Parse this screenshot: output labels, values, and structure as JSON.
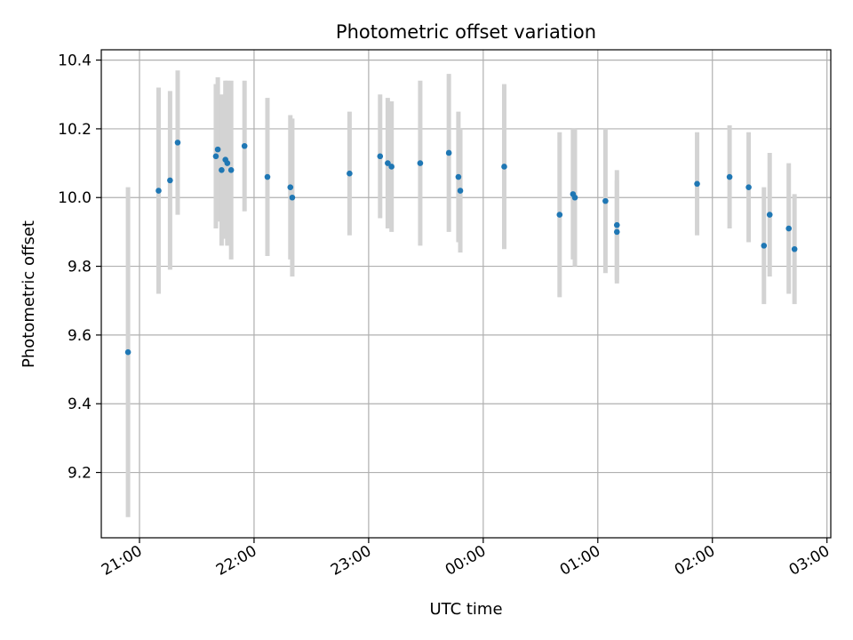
{
  "chart_data": {
    "type": "scatter",
    "title": "Photometric offset variation",
    "xlabel": "UTC time",
    "ylabel": "Photometric offset",
    "x_axis": {
      "kind": "time",
      "range": [
        "20:40",
        "03:02"
      ],
      "ticks": [
        {
          "time": "21:00",
          "label": "21:00"
        },
        {
          "time": "22:00",
          "label": "22:00"
        },
        {
          "time": "23:00",
          "label": "23:00"
        },
        {
          "time": "00:00",
          "label": "00:00"
        },
        {
          "time": "01:00",
          "label": "01:00"
        },
        {
          "time": "02:00",
          "label": "02:00"
        },
        {
          "time": "03:00",
          "label": "03:00"
        }
      ]
    },
    "y_axis": {
      "range": [
        9.01,
        10.43
      ],
      "ticks": [
        9.2,
        9.4,
        9.6,
        9.8,
        10.0,
        10.2,
        10.4
      ],
      "tick_labels": [
        "9.2",
        "9.4",
        "9.6",
        "9.8",
        "10.0",
        "10.2",
        "10.4"
      ]
    },
    "grid": true,
    "colors": {
      "point": "#1f77b4",
      "errorbar": "#d3d3d3",
      "grid": "#b0b0b0"
    },
    "series": [
      {
        "points": [
          {
            "time": "20:54",
            "y": 9.55,
            "err": 0.48
          },
          {
            "time": "21:10",
            "y": 10.02,
            "err": 0.3
          },
          {
            "time": "21:16",
            "y": 10.05,
            "err": 0.26
          },
          {
            "time": "21:20",
            "y": 10.16,
            "err": 0.21
          },
          {
            "time": "21:40",
            "y": 10.12,
            "err": 0.21
          },
          {
            "time": "21:41",
            "y": 10.14,
            "err": 0.21
          },
          {
            "time": "21:43",
            "y": 10.08,
            "err": 0.22
          },
          {
            "time": "21:45",
            "y": 10.11,
            "err": 0.23
          },
          {
            "time": "21:46",
            "y": 10.1,
            "err": 0.24
          },
          {
            "time": "21:48",
            "y": 10.08,
            "err": 0.26
          },
          {
            "time": "21:55",
            "y": 10.15,
            "err": 0.19
          },
          {
            "time": "22:07",
            "y": 10.06,
            "err": 0.23
          },
          {
            "time": "22:19",
            "y": 10.03,
            "err": 0.21
          },
          {
            "time": "22:20",
            "y": 10.0,
            "err": 0.23
          },
          {
            "time": "22:50",
            "y": 10.07,
            "err": 0.18
          },
          {
            "time": "23:06",
            "y": 10.12,
            "err": 0.18
          },
          {
            "time": "23:10",
            "y": 10.1,
            "err": 0.19
          },
          {
            "time": "23:12",
            "y": 10.09,
            "err": 0.19
          },
          {
            "time": "23:27",
            "y": 10.1,
            "err": 0.24
          },
          {
            "time": "23:42",
            "y": 10.13,
            "err": 0.23
          },
          {
            "time": "23:47",
            "y": 10.06,
            "err": 0.19
          },
          {
            "time": "23:48",
            "y": 10.02,
            "err": 0.18
          },
          {
            "time": "00:11",
            "y": 10.09,
            "err": 0.24
          },
          {
            "time": "00:40",
            "y": 9.95,
            "err": 0.24
          },
          {
            "time": "00:47",
            "y": 10.01,
            "err": 0.19
          },
          {
            "time": "00:48",
            "y": 10.0,
            "err": 0.2
          },
          {
            "time": "01:04",
            "y": 9.99,
            "err": 0.21
          },
          {
            "time": "01:10",
            "y": 9.92,
            "err": 0.16
          },
          {
            "time": "01:10",
            "y": 9.9,
            "err": 0.15
          },
          {
            "time": "01:52",
            "y": 10.04,
            "err": 0.15
          },
          {
            "time": "02:09",
            "y": 10.06,
            "err": 0.15
          },
          {
            "time": "02:19",
            "y": 10.03,
            "err": 0.16
          },
          {
            "time": "02:27",
            "y": 9.86,
            "err": 0.17
          },
          {
            "time": "02:30",
            "y": 9.95,
            "err": 0.18
          },
          {
            "time": "02:40",
            "y": 9.91,
            "err": 0.19
          },
          {
            "time": "02:43",
            "y": 9.85,
            "err": 0.16
          }
        ]
      }
    ]
  }
}
